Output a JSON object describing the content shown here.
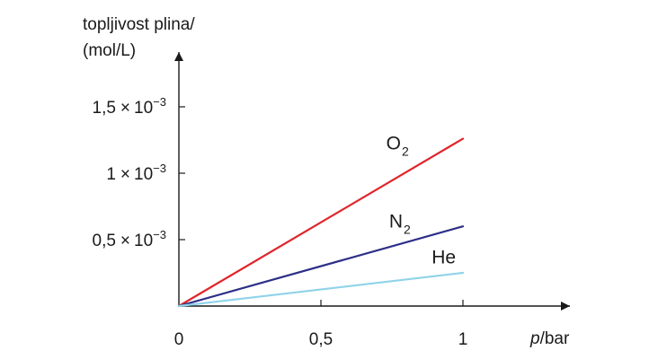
{
  "chart_data": {
    "type": "line",
    "title": "",
    "ylabel_lines": [
      "topljivost plina/",
      "(mol/L)"
    ],
    "xlabel_var": "p",
    "xlabel_unit": "/bar",
    "xlim": [
      0,
      1.35
    ],
    "ylim": [
      0,
      0.00195
    ],
    "x_ticks": [
      {
        "value": 0,
        "label": "0"
      },
      {
        "value": 0.5,
        "label": "0,5"
      },
      {
        "value": 1,
        "label": "1"
      }
    ],
    "y_ticks": [
      {
        "value": 0.0005,
        "mantissa": "0,5",
        "times": "×",
        "base": "10",
        "exp": "−3"
      },
      {
        "value": 0.001,
        "mantissa": "1",
        "times": "×",
        "base": "10",
        "exp": "−3"
      },
      {
        "value": 0.0015,
        "mantissa": "1,5",
        "times": "×",
        "base": "10",
        "exp": "−3"
      }
    ],
    "series": [
      {
        "id": "o2",
        "name": "O",
        "sub": "2",
        "color": "#e0262b",
        "x": [
          0,
          1
        ],
        "y": [
          0,
          0.00126
        ],
        "label_pos": [
          0.73,
          0.00118
        ]
      },
      {
        "id": "n2",
        "name": "N",
        "sub": "2",
        "color": "#2d2f87",
        "x": [
          0,
          1
        ],
        "y": [
          0,
          0.0006
        ],
        "label_pos": [
          0.74,
          0.00059
        ]
      },
      {
        "id": "he",
        "name": "He",
        "sub": "",
        "color": "#8fd3ea",
        "x": [
          0,
          1
        ],
        "y": [
          0,
          0.00025
        ],
        "label_pos": [
          0.89,
          0.00032
        ]
      }
    ]
  }
}
